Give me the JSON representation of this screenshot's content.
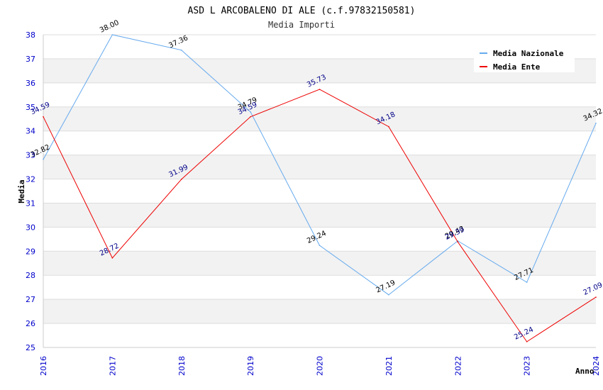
{
  "chart_data": {
    "type": "line",
    "title": "ASD L ARCOBALENO DI ALE (c.f.97832150581)",
    "subtitle": "Media Importi",
    "xlabel": "Anno",
    "ylabel": "Media",
    "categories": [
      "2016",
      "2017",
      "2018",
      "2019",
      "2020",
      "2021",
      "2022",
      "2023",
      "2024"
    ],
    "ylim": [
      25,
      38
    ],
    "yticks": [
      "25",
      "26",
      "27",
      "28",
      "29",
      "30",
      "31",
      "32",
      "33",
      "34",
      "35",
      "36",
      "37",
      "38"
    ],
    "grid": true,
    "legend_position": "top-right",
    "series": [
      {
        "name": "Media Nazionale",
        "color": "#66aaee",
        "label_color": "#000000",
        "values": [
          32.82,
          38.0,
          37.36,
          34.79,
          29.24,
          27.19,
          29.43,
          27.71,
          34.32
        ],
        "labels": [
          "32.82",
          "38.00",
          "37.36",
          "34.79",
          "29.24",
          "27.19",
          "29.43",
          "27.71",
          "34.32"
        ]
      },
      {
        "name": "Media Ente",
        "color": "#ee0000",
        "label_color": "#000088",
        "values": [
          34.59,
          28.72,
          31.99,
          34.59,
          35.73,
          34.18,
          29.39,
          25.24,
          27.09
        ],
        "labels": [
          "34.59",
          "28.72",
          "31.99",
          "34.59",
          "35.73",
          "34.18",
          "29.39",
          "25.24",
          "27.09"
        ]
      }
    ]
  }
}
